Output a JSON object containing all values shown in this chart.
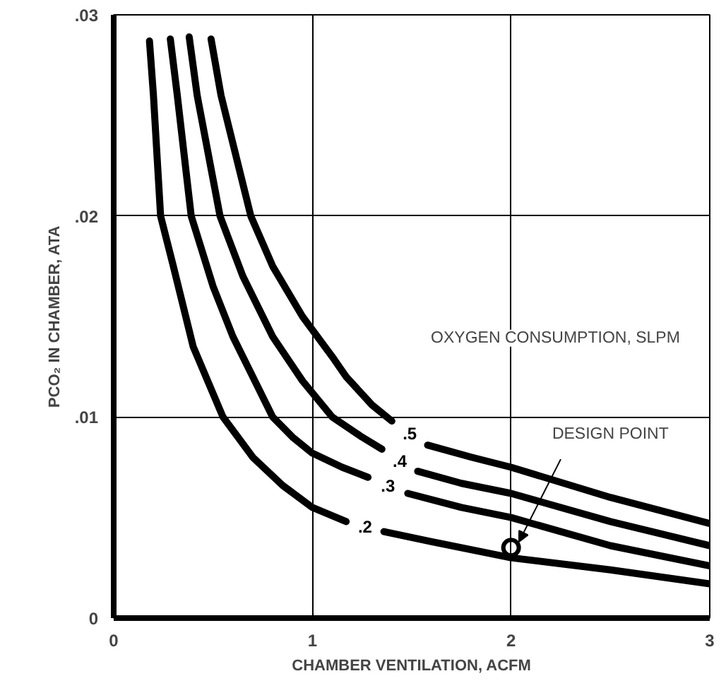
{
  "chart_data": {
    "type": "line",
    "xlabel": "CHAMBER VENTILATION, ACFM",
    "ylabel": "PCO₂ IN CHAMBER, ATA",
    "legend_title": "OXYGEN CONSUMPTION, SLPM",
    "xlim": [
      0,
      3
    ],
    "ylim": [
      0,
      0.03
    ],
    "xticks": [
      0,
      1,
      2,
      3
    ],
    "yticks": [
      0,
      {
        "value": 0.01,
        "label": ".01"
      },
      {
        "value": 0.02,
        "label": ".02"
      },
      {
        "value": 0.03,
        "label": ".03"
      }
    ],
    "grid": true,
    "line_style": "solid",
    "marker": "none",
    "series": [
      {
        "name": ".2",
        "color": "#000000",
        "x": [
          0.18,
          0.2,
          0.236,
          0.3,
          0.4,
          0.55,
          0.7,
          0.85,
          1.0,
          1.17,
          null,
          1.36,
          1.6,
          2.0,
          2.5,
          3.0
        ],
        "values": [
          0.0287,
          0.026,
          0.02,
          0.0175,
          0.0135,
          0.01,
          0.008,
          0.0066,
          0.0055,
          0.0048,
          null,
          0.0043,
          0.0038,
          0.003,
          0.0024,
          0.0017
        ]
      },
      {
        "name": ".3",
        "color": "#000000",
        "x": [
          0.285,
          0.32,
          0.39,
          0.5,
          0.6,
          0.8,
          0.9,
          1.0,
          1.15,
          1.28,
          null,
          1.48,
          1.75,
          2.0,
          2.5,
          3.0
        ],
        "values": [
          0.0288,
          0.026,
          0.02,
          0.0165,
          0.014,
          0.01,
          0.009,
          0.0082,
          0.0075,
          0.007,
          null,
          0.0062,
          0.0055,
          0.005,
          0.0036,
          0.0026
        ]
      },
      {
        "name": ".4",
        "color": "#000000",
        "x": [
          0.38,
          0.42,
          0.535,
          0.65,
          0.8,
          0.95,
          1.1,
          1.25,
          1.35,
          null,
          1.53,
          1.75,
          2.0,
          2.5,
          3.0
        ],
        "values": [
          0.0289,
          0.026,
          0.02,
          0.017,
          0.014,
          0.0118,
          0.01,
          0.009,
          0.0084,
          null,
          0.0073,
          0.0067,
          0.0062,
          0.0048,
          0.0036
        ]
      },
      {
        "name": ".5",
        "color": "#000000",
        "x": [
          0.49,
          0.54,
          0.69,
          0.8,
          0.95,
          1.1,
          1.17,
          1.3,
          1.4,
          null,
          1.58,
          1.8,
          2.0,
          2.5,
          3.0
        ],
        "values": [
          0.0288,
          0.026,
          0.02,
          0.0175,
          0.015,
          0.013,
          0.012,
          0.0106,
          0.0098,
          null,
          0.0086,
          0.008,
          0.0075,
          0.006,
          0.0047
        ]
      }
    ],
    "annotations": [
      {
        "text": "DESIGN POINT",
        "x": 2,
        "y": 0.0035
      }
    ]
  }
}
